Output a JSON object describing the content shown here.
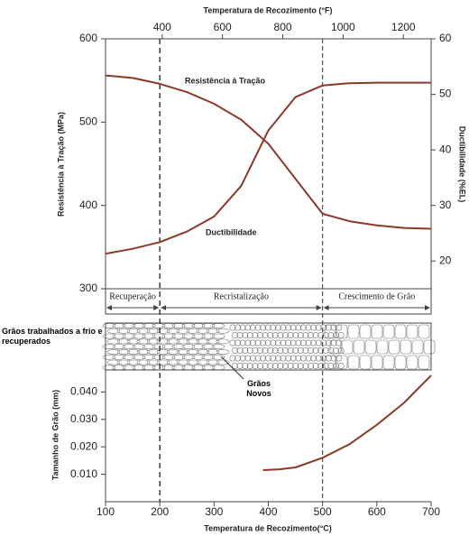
{
  "chart_data": [
    {
      "type": "line",
      "x2_label": "Temperatura de Recozimento (°F)",
      "x2lim": [
        212,
        1292
      ],
      "x2ticks": [
        400,
        600,
        800,
        1000,
        1200
      ],
      "xlim": [
        100,
        700
      ],
      "y_label": "Resistência à Tração (MPa)",
      "ylim": [
        300,
        600
      ],
      "yticks": [
        300,
        400,
        500,
        600
      ],
      "y2_label": "Ductibilidade (%EL)",
      "y2lim": [
        15,
        60
      ],
      "y2ticks": [
        20,
        30,
        40,
        50,
        60
      ],
      "x": [
        100,
        150,
        200,
        250,
        300,
        350,
        400,
        450,
        500,
        550,
        600,
        650,
        700
      ],
      "series": [
        {
          "name": "Resistência à Tração",
          "color": "#8b3a2a",
          "values": [
            556,
            553,
            546,
            536,
            522,
            503,
            474,
            432,
            390,
            381,
            376,
            373,
            372
          ]
        },
        {
          "name": "Ductibilidade",
          "color": "#8b3a2a",
          "axis": "y2",
          "values": [
            21.3,
            22.2,
            23.4,
            25.3,
            28.0,
            33.5,
            43.5,
            49.5,
            51.6,
            52.0,
            52.1,
            52.1,
            52.1
          ]
        }
      ],
      "boundaries": [
        200,
        500
      ],
      "regions": [
        "Recuperação",
        "Recristalização",
        "Crescimento de Grão"
      ]
    },
    {
      "type": "line",
      "x_label": "Temperatura de Recozimento(°C)",
      "xlim": [
        100,
        700
      ],
      "xticks": [
        100,
        200,
        300,
        400,
        500,
        600,
        700
      ],
      "y_label": "Tamanho de Grão (mm)",
      "ylim": [
        0,
        0.048
      ],
      "yticks": [
        {
          "value": 0.01,
          "label": "0.010"
        },
        {
          "value": 0.02,
          "label": "0.020"
        },
        {
          "value": 0.03,
          "label": "0.030"
        },
        {
          "value": 0.04,
          "label": "0.040"
        }
      ],
      "annotations": [
        "Grãos trabalhados a frio e recuperados",
        "Grãos Novos"
      ],
      "x": [
        390,
        420,
        450,
        500,
        550,
        600,
        650,
        700
      ],
      "series": [
        {
          "color": "#8b3a2a",
          "values": [
            0.0115,
            0.0118,
            0.0125,
            0.016,
            0.021,
            0.028,
            0.036,
            0.046
          ]
        }
      ]
    }
  ]
}
